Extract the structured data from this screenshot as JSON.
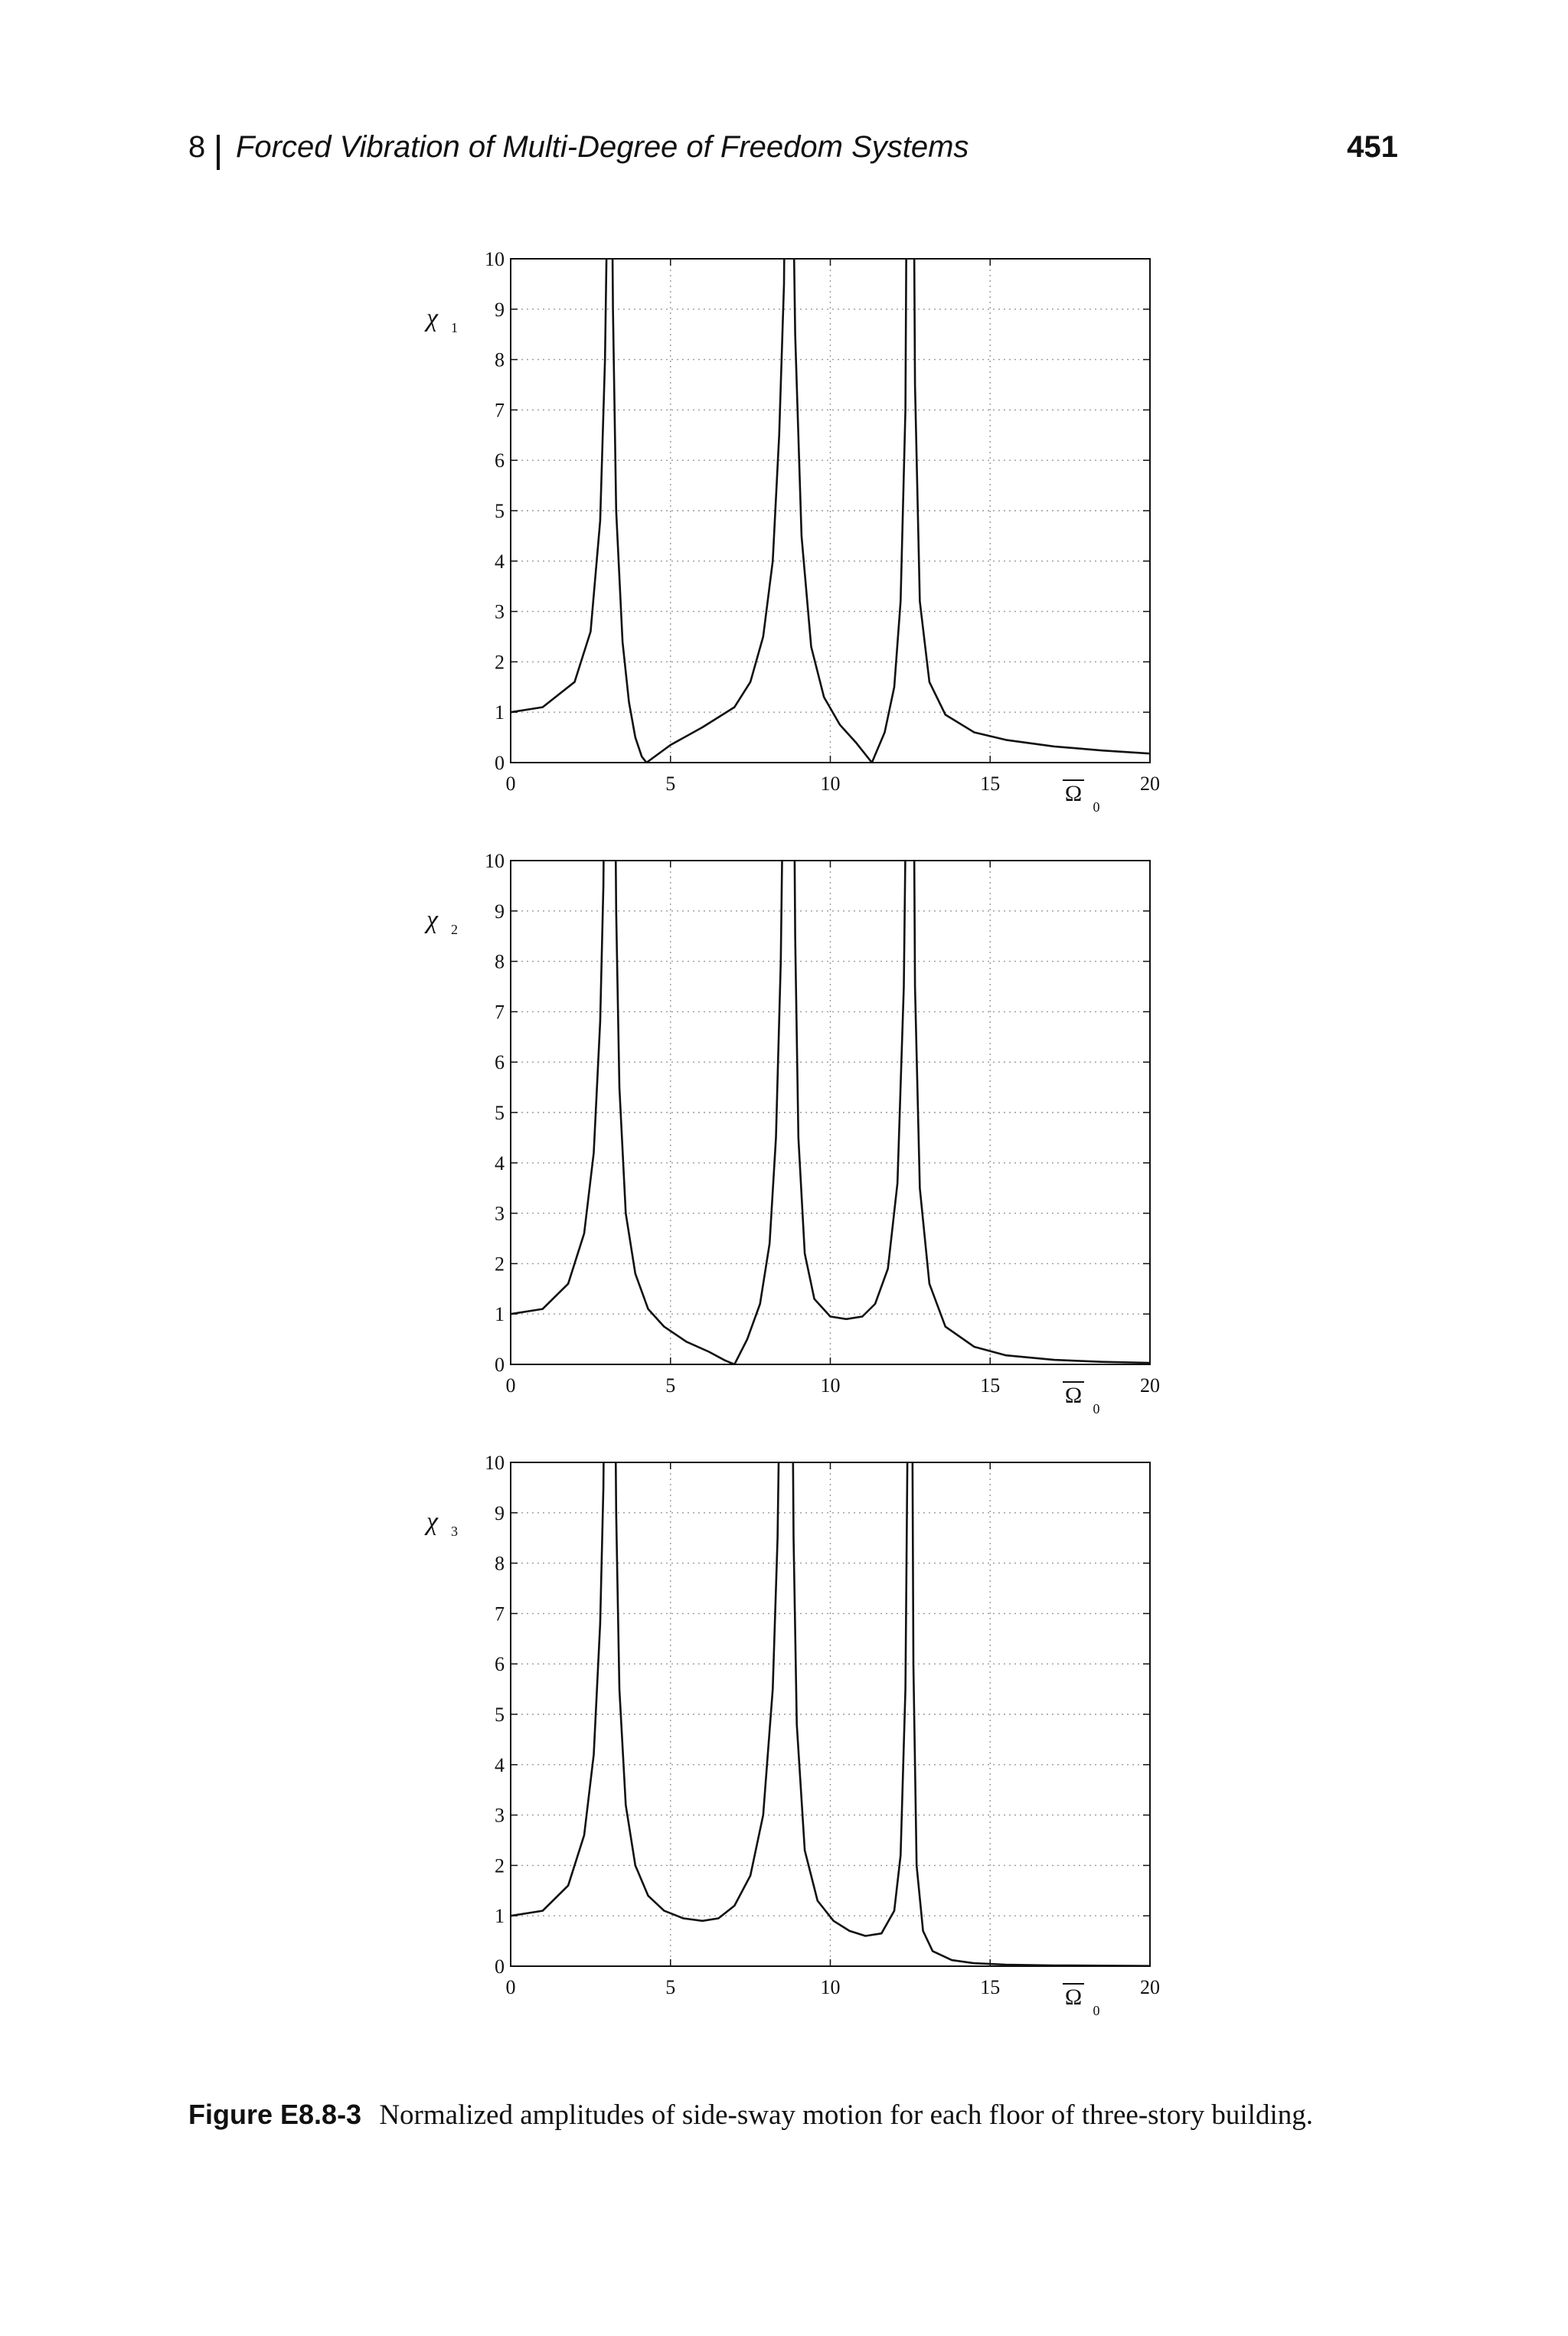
{
  "header": {
    "chapter_number": "8",
    "chapter_title": "Forced Vibration of Multi-Degree of Freedom Systems",
    "page_number": "451"
  },
  "caption": {
    "label": "Figure E8.8-3",
    "text": "Normalized amplitudes of side-sway motion for each floor of three-story building."
  },
  "chart_data": [
    {
      "type": "line",
      "ylabel": "χ",
      "ylabel_sub": "1",
      "xlabel": "Ω",
      "xlabel_sub": "0",
      "xlim": [
        0,
        20
      ],
      "ylim": [
        0,
        10
      ],
      "xticks": [
        0,
        5,
        10,
        15,
        20
      ],
      "yticks": [
        0,
        1,
        2,
        3,
        4,
        5,
        6,
        7,
        8,
        9,
        10
      ],
      "grid": true,
      "resonances": [
        3.1,
        8.7,
        12.5
      ],
      "series": [
        {
          "x": [
            0,
            1,
            2,
            2.5,
            2.8,
            2.95,
            3.0,
            3.05
          ],
          "y": [
            1.0,
            1.1,
            1.6,
            2.6,
            4.8,
            8.0,
            10.2,
            13
          ]
        },
        {
          "x": [
            3.15,
            3.2,
            3.3,
            3.5,
            3.7,
            3.9,
            4.1,
            4.25
          ],
          "y": [
            13,
            9.0,
            5.0,
            2.4,
            1.2,
            0.5,
            0.12,
            0.0
          ]
        },
        {
          "x": [
            4.25,
            5,
            6,
            7,
            7.5,
            7.9,
            8.2,
            8.4,
            8.55,
            8.6
          ],
          "y": [
            0.0,
            0.35,
            0.7,
            1.1,
            1.6,
            2.5,
            4.0,
            6.5,
            9.5,
            13
          ]
        },
        {
          "x": [
            8.8,
            8.9,
            9.1,
            9.4,
            9.8,
            10.3,
            10.8,
            11.3
          ],
          "y": [
            13,
            8.5,
            4.5,
            2.3,
            1.3,
            0.75,
            0.4,
            0.0
          ]
        },
        {
          "x": [
            11.3,
            11.7,
            12.0,
            12.2,
            12.35,
            12.4
          ],
          "y": [
            0.0,
            0.6,
            1.5,
            3.2,
            7.0,
            13
          ]
        },
        {
          "x": [
            12.6,
            12.65,
            12.8,
            13.1,
            13.6,
            14.5,
            15.5,
            17,
            18.5,
            20
          ],
          "y": [
            13,
            7.5,
            3.2,
            1.6,
            0.95,
            0.6,
            0.45,
            0.32,
            0.24,
            0.18
          ]
        }
      ]
    },
    {
      "type": "line",
      "ylabel": "χ",
      "ylabel_sub": "2",
      "xlabel": "Ω",
      "xlabel_sub": "0",
      "xlim": [
        0,
        20
      ],
      "ylim": [
        0,
        10
      ],
      "xticks": [
        0,
        5,
        10,
        15,
        20
      ],
      "yticks": [
        0,
        1,
        2,
        3,
        4,
        5,
        6,
        7,
        8,
        9,
        10
      ],
      "grid": true,
      "resonances": [
        3.1,
        8.7,
        12.5
      ],
      "series": [
        {
          "x": [
            0,
            1,
            1.8,
            2.3,
            2.6,
            2.8,
            2.9,
            2.95
          ],
          "y": [
            1.0,
            1.1,
            1.6,
            2.6,
            4.2,
            6.8,
            9.5,
            13
          ]
        },
        {
          "x": [
            3.25,
            3.3,
            3.4,
            3.6,
            3.9,
            4.3,
            4.8,
            5.5,
            6.2,
            6.7,
            7.0
          ],
          "y": [
            13,
            9.0,
            5.5,
            3.0,
            1.8,
            1.1,
            0.75,
            0.45,
            0.25,
            0.08,
            0.0
          ]
        },
        {
          "x": [
            7.0,
            7.4,
            7.8,
            8.1,
            8.3,
            8.45,
            8.55
          ],
          "y": [
            0.0,
            0.5,
            1.2,
            2.4,
            4.5,
            8.0,
            13
          ]
        },
        {
          "x": [
            8.85,
            8.9,
            9.0,
            9.2,
            9.5,
            10.0,
            10.5,
            11.0,
            11.4,
            11.8,
            12.1,
            12.3,
            12.4
          ],
          "y": [
            13,
            8.5,
            4.5,
            2.2,
            1.3,
            0.95,
            0.9,
            0.95,
            1.2,
            1.9,
            3.6,
            7.5,
            13
          ]
        },
        {
          "x": [
            12.6,
            12.65,
            12.8,
            13.1,
            13.6,
            14.5,
            15.5,
            17,
            18.5,
            20
          ],
          "y": [
            13,
            7.5,
            3.5,
            1.6,
            0.75,
            0.35,
            0.18,
            0.09,
            0.05,
            0.03
          ]
        }
      ]
    },
    {
      "type": "line",
      "ylabel": "χ",
      "ylabel_sub": "3",
      "xlabel": "Ω",
      "xlabel_sub": "0",
      "xlim": [
        0,
        20
      ],
      "ylim": [
        0,
        10
      ],
      "xticks": [
        0,
        5,
        10,
        15,
        20
      ],
      "yticks": [
        0,
        1,
        2,
        3,
        4,
        5,
        6,
        7,
        8,
        9,
        10
      ],
      "grid": true,
      "resonances": [
        3.1,
        8.7,
        12.5
      ],
      "series": [
        {
          "x": [
            0,
            1,
            1.8,
            2.3,
            2.6,
            2.8,
            2.9,
            2.95
          ],
          "y": [
            1.0,
            1.1,
            1.6,
            2.6,
            4.2,
            6.8,
            9.5,
            13
          ]
        },
        {
          "x": [
            3.25,
            3.3,
            3.4,
            3.6,
            3.9,
            4.3,
            4.8,
            5.4,
            6.0,
            6.5,
            7.0,
            7.5,
            7.9,
            8.2,
            8.35,
            8.45
          ],
          "y": [
            13,
            9.0,
            5.5,
            3.2,
            2.0,
            1.4,
            1.1,
            0.95,
            0.9,
            0.95,
            1.2,
            1.8,
            3.0,
            5.5,
            8.5,
            13
          ]
        },
        {
          "x": [
            8.8,
            8.85,
            8.95,
            9.2,
            9.6,
            10.1,
            10.6,
            11.1,
            11.6,
            12.0,
            12.2,
            12.35,
            12.45
          ],
          "y": [
            13,
            8.5,
            4.8,
            2.3,
            1.3,
            0.9,
            0.7,
            0.6,
            0.65,
            1.1,
            2.2,
            5.5,
            13
          ]
        },
        {
          "x": [
            12.55,
            12.6,
            12.7,
            12.9,
            13.2,
            13.8,
            14.5,
            15.5,
            17,
            18.5,
            20
          ],
          "y": [
            13,
            6.0,
            2.0,
            0.7,
            0.3,
            0.12,
            0.06,
            0.03,
            0.015,
            0.01,
            0.005
          ]
        }
      ]
    }
  ]
}
